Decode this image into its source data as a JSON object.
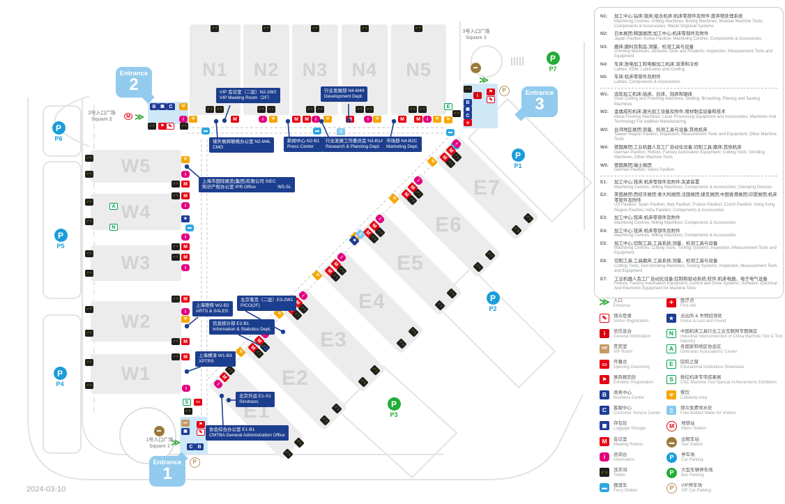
{
  "page": {
    "date": "2024-03-10"
  },
  "map": {
    "halls": [
      {
        "id": "N1",
        "label": "N1"
      },
      {
        "id": "N2",
        "label": "N2"
      },
      {
        "id": "N3",
        "label": "N3"
      },
      {
        "id": "N4",
        "label": "N4"
      },
      {
        "id": "N5",
        "label": "N5"
      },
      {
        "id": "W5",
        "label": "W5"
      },
      {
        "id": "W4",
        "label": "W4"
      },
      {
        "id": "W3",
        "label": "W3"
      },
      {
        "id": "W2",
        "label": "W2"
      },
      {
        "id": "W1",
        "label": "W1"
      },
      {
        "id": "E1",
        "label": "E1"
      },
      {
        "id": "E2",
        "label": "E2"
      },
      {
        "id": "E3",
        "label": "E3"
      },
      {
        "id": "E4",
        "label": "E4"
      },
      {
        "id": "E5",
        "label": "E5"
      },
      {
        "id": "E6",
        "label": "E6"
      },
      {
        "id": "E7",
        "label": "E7"
      }
    ],
    "entrances": [
      {
        "id": "e1",
        "word": "Entrance",
        "number": "1"
      },
      {
        "id": "e2",
        "word": "Entrance",
        "number": "2"
      },
      {
        "id": "e3",
        "word": "Entrance",
        "number": "3"
      }
    ],
    "squares": [
      {
        "id": "s1",
        "zh": "1号入口广场",
        "en": "Square 1"
      },
      {
        "id": "s2",
        "zh": "2号入口广场",
        "en": "Square 2"
      },
      {
        "id": "s3",
        "zh": "3号入口广场",
        "en": "Square 3"
      }
    ],
    "parking": [
      {
        "id": "P1",
        "label": "P1",
        "color": "blue"
      },
      {
        "id": "P2",
        "label": "P2",
        "color": "blue"
      },
      {
        "id": "P3",
        "label": "P3",
        "color": "green"
      },
      {
        "id": "P4",
        "label": "P4",
        "color": "blue"
      },
      {
        "id": "P5",
        "label": "P5",
        "color": "blue"
      },
      {
        "id": "P6",
        "label": "P6",
        "color": "blue"
      },
      {
        "id": "P7",
        "label": "P7",
        "color": "green"
      }
    ],
    "callouts": [
      {
        "id": "vip-meeting-room",
        "line1": "VIP 会议室（二层）N2-2W2",
        "line2": "VIP Meeting Room（2F）"
      },
      {
        "id": "development-dept",
        "line1": "行业发展部 N4-M44",
        "line2": "Development Dept."
      },
      {
        "id": "cmo",
        "line1": "境外展商联络办公室 N2-M4L",
        "line2": "CMO"
      },
      {
        "id": "press-center",
        "line1": "新闻中心 N2-B1",
        "line2": "Press Center"
      },
      {
        "id": "research-planning",
        "line1": "行业发展工作委员会 N3-B1A",
        "line2": "Research & Planning Dept."
      },
      {
        "id": "marketing-dept",
        "line1": "市场部 N4-B2C",
        "line2": "Marketing Dept."
      },
      {
        "id": "siec-ipr",
        "line1": "上海市国际展览(集团)有限公司 SIEC",
        "line2": "知识产权办公室 IPR Office",
        "tag": "W5-SL"
      },
      {
        "id": "arts-sales",
        "line1": "上海艳特 W2-B2",
        "line2": "ARTS & SALES"
      },
      {
        "id": "pico",
        "line1": "北京笔克（二层）E3-2W1",
        "line2": "PICO(2F)"
      },
      {
        "id": "info-statistics",
        "line1": "信息统计部 E2-B1",
        "line2": "Information & Statistics Dept."
      },
      {
        "id": "xptrs",
        "line1": "上海搏涛 W1-B3",
        "line2": "XPTRS"
      },
      {
        "id": "sinotrans",
        "line1": "北京外运 E1-S1",
        "line2": "Sinotrans"
      },
      {
        "id": "cmtba-admin",
        "line1": "协会综合办公室 E1-B1",
        "line2": "CMTBA General Administration Office"
      }
    ]
  },
  "legend": {
    "sections": [
      {
        "items": [
          {
            "code": "N1:",
            "zh": "加工中心;钻床;镗床;组合机床;机床零部件及附件;废弃物处理系统",
            "en": "Machining Centres; Drilling Machines; Boring Machines; Modular Machine Tools; Components & Accessories; Waste Disposal Systems"
          },
          {
            "code": "N2:",
            "zh": "日本展团;韩国展团;加工中心;机床零部件及附件",
            "en": "Japan Pavilion; Korea Pavilion; Machining Centres; Components & Accessories"
          },
          {
            "code": "N3:",
            "zh": "磨床;磨料及制品;测量、检测工具与设备",
            "en": "Grinding Machines; Abrasive Tools and Products; Inspection, Measurement Tools and Equipment"
          },
          {
            "code": "N4:",
            "zh": "车床;放电加工和电解加工机床;润滑和冷却",
            "en": "Lathes; EDM; Lubrication and Cooling"
          },
          {
            "code": "N5:",
            "zh": "车床;机床零部件及附件",
            "en": "Lathes; Components & Accessories"
          }
        ]
      },
      {
        "items": [
          {
            "code": "W1:",
            "zh": "齿轮加工机床;插床、拉床、刨床和锯床",
            "en": "Gear Cutting and Finishing Machines; Slotting, Broaching, Planing and Sawing Machines"
          },
          {
            "code": "W2:",
            "zh": "金属成形机床;激光加工设备及附件;增材制造设备和技术",
            "en": "Metal Forming Machines; Laser Processing Equipment and Accessories; Machines And Technology For Additive Manufacturing"
          },
          {
            "code": "W3:",
            "zh": "台湾地区展团;测量、检测工具与设备;其他机床",
            "en": "Taiwan Region Pavilion; Inspection, Measurement Tools and Equipment; Other Machine Tools"
          },
          {
            "code": "W4:",
            "zh": "德国展团;工业机器人及工厂自动化设备;切削工具;磨床;其他机床",
            "en": "German Pavilion; Robots, Factory Automation Equipment; Cutting Tools; Grinding Machines; Other Machine Tools"
          },
          {
            "code": "W5:",
            "zh": "德国展团;瑞士展团",
            "en": "German Pavilion; Swiss Pavilion"
          }
        ]
      },
      {
        "items": [
          {
            "code": "E1:",
            "zh": "加工中心;铣床;机床零部件及附件;夹紧装置",
            "en": "Machining Centres; Milling Machines; Components & Accessories; Clamping Devices"
          },
          {
            "code": "E2:",
            "zh": "美国展团;西班牙展团;意大利展团;法国展团;捷克展团;中国香港展团;印度展团;机床零部件及附件",
            "en": "US Pavilion; Spain Pavilion; Italy Pavilion; France Pavilion; Czech Pavilion; Hong Kong Region Pavilion; India Pavilion; Components & Accessories"
          },
          {
            "code": "E3:",
            "zh": "加工中心;铣床;机床零部件及附件",
            "en": "Machining Centres; Milling Machines; Components & Accessories"
          },
          {
            "code": "E4:",
            "zh": "加工中心;铣床;机床零部件及附件",
            "en": "Machining Centres; Milling Machines; Components & Accessories"
          },
          {
            "code": "E5:",
            "zh": "加工中心;切削工具;工具系统;测量、检测工具与设备",
            "en": "Machining Centres; Cutting Tools; Tooling Systems; Inspection, Measurement Tools and Equipment"
          },
          {
            "code": "E6:",
            "zh": "切削工具;工具磨床;工具系统;测量、检测工具与设备",
            "en": "Cutting Tools; Tool Grinding Machines; Tooling Systems; Inspection, Measurement Tools and Equipment"
          },
          {
            "code": "E7:",
            "zh": "工业机器人及工厂自动化设备;控制和驱动系统;软件;机床电器、电子电气设备",
            "en": "Robots, Factory Automation Equipment; Control and Drive Systems; Software; Electrical And Electronic Equipment for Machine Tools"
          }
        ]
      }
    ]
  },
  "icon_legend": {
    "left": [
      {
        "icon": "entrance-arrows",
        "zh": "入口",
        "en": "Entrance"
      },
      {
        "icon": "visitor-reg",
        "zh": "观众登录",
        "en": "Visitor Registration"
      },
      {
        "icon": "info-red",
        "zh": "总信息台",
        "en": "General Information"
      },
      {
        "icon": "vip-room",
        "zh": "贵宾室",
        "en": "VIP Room"
      },
      {
        "icon": "opening",
        "zh": "开幕式",
        "en": "Opening Ceremony"
      },
      {
        "icon": "exhibitor-reg",
        "zh": "展商报到处",
        "en": "Exhibitor Registration"
      },
      {
        "icon": "business",
        "zh": "商务中心",
        "en": "Business Center"
      },
      {
        "icon": "customer",
        "zh": "客服中心",
        "en": "Customer Service Center"
      },
      {
        "icon": "luggage",
        "zh": "存包处",
        "en": "Luggage Storage"
      },
      {
        "icon": "meeting",
        "zh": "会议室",
        "en": "Meeting Rooms"
      },
      {
        "icon": "info-pink",
        "zh": "咨询台",
        "en": "Information"
      },
      {
        "icon": "toilets",
        "zh": "洗手间",
        "en": "Toilets"
      },
      {
        "icon": "ferry",
        "zh": "摆渡车",
        "en": "Ferry Station"
      }
    ],
    "right": [
      {
        "icon": "first-aid",
        "zh": "医疗点",
        "en": "First Aid"
      },
      {
        "icon": "police",
        "zh": "派出所 & 失物招领处",
        "en": "Police & Lost and Found"
      },
      {
        "icon": "chip-n",
        "zh": "中国机床工具行业工业互联网专题展区",
        "en": "Industrial Interconnection of China Machine Tool & Tool Industry"
      },
      {
        "icon": "chip-a",
        "zh": "各国家和地区协会区",
        "en": "Overseas Associations' Center"
      },
      {
        "icon": "chip-e",
        "zh": "院校之窗",
        "en": "Educational Institutions Showcase"
      },
      {
        "icon": "chip-s",
        "zh": "数控机床专项成果展",
        "en": "CNC Machine Tool Special Achievements Exhibition"
      },
      {
        "icon": "cafeteria",
        "zh": "餐饮",
        "en": "Cafeteria Area"
      },
      {
        "icon": "water",
        "zh": "观众免费领水处",
        "en": "Free Bottled Water for Visitors"
      },
      {
        "icon": "metro",
        "zh": "地铁站",
        "en": "Metro Station"
      },
      {
        "icon": "taxi",
        "zh": "出租车站",
        "en": "Taxi Station"
      },
      {
        "icon": "parking-blue",
        "zh": "停车场",
        "en": "Car Parking"
      },
      {
        "icon": "parking-green",
        "zh": "大型车辆停车场",
        "en": "Bus Parking"
      },
      {
        "icon": "parking-vip",
        "zh": "VIP停车场",
        "en": "VIP Car Parking"
      }
    ]
  }
}
